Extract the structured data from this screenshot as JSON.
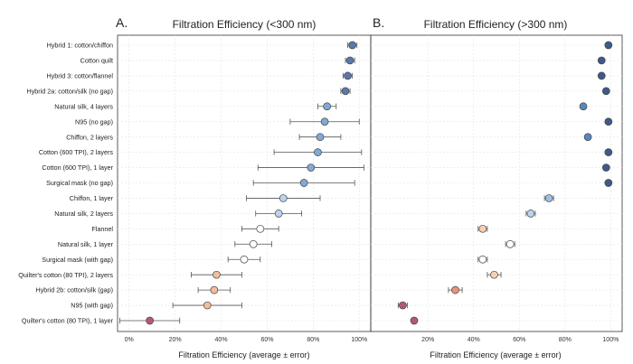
{
  "chart_data": [
    {
      "type": "scatter",
      "panel": "A.",
      "title": "Filtration Efficiency (<300 nm)",
      "xlabel": "Filtration Efficiency (average ± error)",
      "ylabel": "",
      "xlim": [
        -5,
        105
      ],
      "xticks": [
        0,
        20,
        40,
        60,
        80,
        100
      ],
      "tick_format": "percent",
      "grid": true,
      "categories": [
        "Hybrid 1: cotton/chiffon",
        "Cotton quilt",
        "Hybrid 3: cotton/flannel",
        "Hybrid 2a: cotton/silk (no gap)",
        "Natural silk, 4 layers",
        "N95 (no gap)",
        "Chiffon, 2 layers",
        "Cotton (600 TPI), 2 layers",
        "Cotton (600 TPI), 1 layer",
        "Surgical mask (no gap)",
        "Chiffon, 1 layer",
        "Natural silk, 2 layers",
        "Flannel",
        "Natural silk, 1 layer",
        "Surgical mask (with gap)",
        "Quilter's cotton (80 TPI), 2 layers",
        "Hybrid 2b: cotton/silk (gap)",
        "N95 (with gap)",
        "Quilter's cotton (80 TPI), 1 layer"
      ],
      "values": [
        97,
        96,
        95,
        94,
        86,
        85,
        83,
        82,
        79,
        76,
        67,
        65,
        57,
        54,
        50,
        38,
        37,
        34,
        9
      ],
      "errors": [
        2,
        2,
        2,
        2,
        4,
        15,
        9,
        19,
        23,
        22,
        16,
        10,
        8,
        8,
        7,
        11,
        7,
        15,
        13
      ],
      "colors": [
        "#5a78aa",
        "#5a78aa",
        "#5a78aa",
        "#5a78aa",
        "#7faad6",
        "#7faad6",
        "#7faad6",
        "#7faad6",
        "#7faad6",
        "#7faad6",
        "#b9d4ec",
        "#b9d4ec",
        "#ffffff",
        "#ffffff",
        "#ffffff",
        "#f1bd9b",
        "#f1bd9b",
        "#f1bd9b",
        "#b4587a"
      ]
    },
    {
      "type": "scatter",
      "panel": "B.",
      "title": "Filtration Efficiency (>300 nm)",
      "xlabel": "Filtration Efficiency (average ± error)",
      "ylabel": "",
      "xlim": [
        -5,
        105
      ],
      "xticks": [
        20,
        40,
        60,
        80,
        100
      ],
      "tick_format": "percent",
      "grid": true,
      "values": [
        99,
        96,
        96,
        98,
        88,
        99,
        90,
        99,
        98,
        99,
        73,
        65,
        44,
        56,
        44,
        49,
        32,
        9,
        14
      ],
      "errors": [
        1,
        1,
        1,
        1,
        1,
        1,
        1,
        1,
        1,
        1,
        2,
        2,
        2,
        2,
        2,
        3,
        3,
        2,
        1
      ],
      "colors": [
        "#3d5a8a",
        "#3d5a8a",
        "#3d5a8a",
        "#3d5a8a",
        "#5a86c0",
        "#3d5a8a",
        "#5a86c0",
        "#3d5a8a",
        "#3d5a8a",
        "#3d5a8a",
        "#9dc1e2",
        "#b9d4ec",
        "#f5d0b5",
        "#ffffff",
        "#ffffff",
        "#f5d0b5",
        "#e4957a",
        "#b4587a",
        "#b4587a"
      ]
    }
  ]
}
